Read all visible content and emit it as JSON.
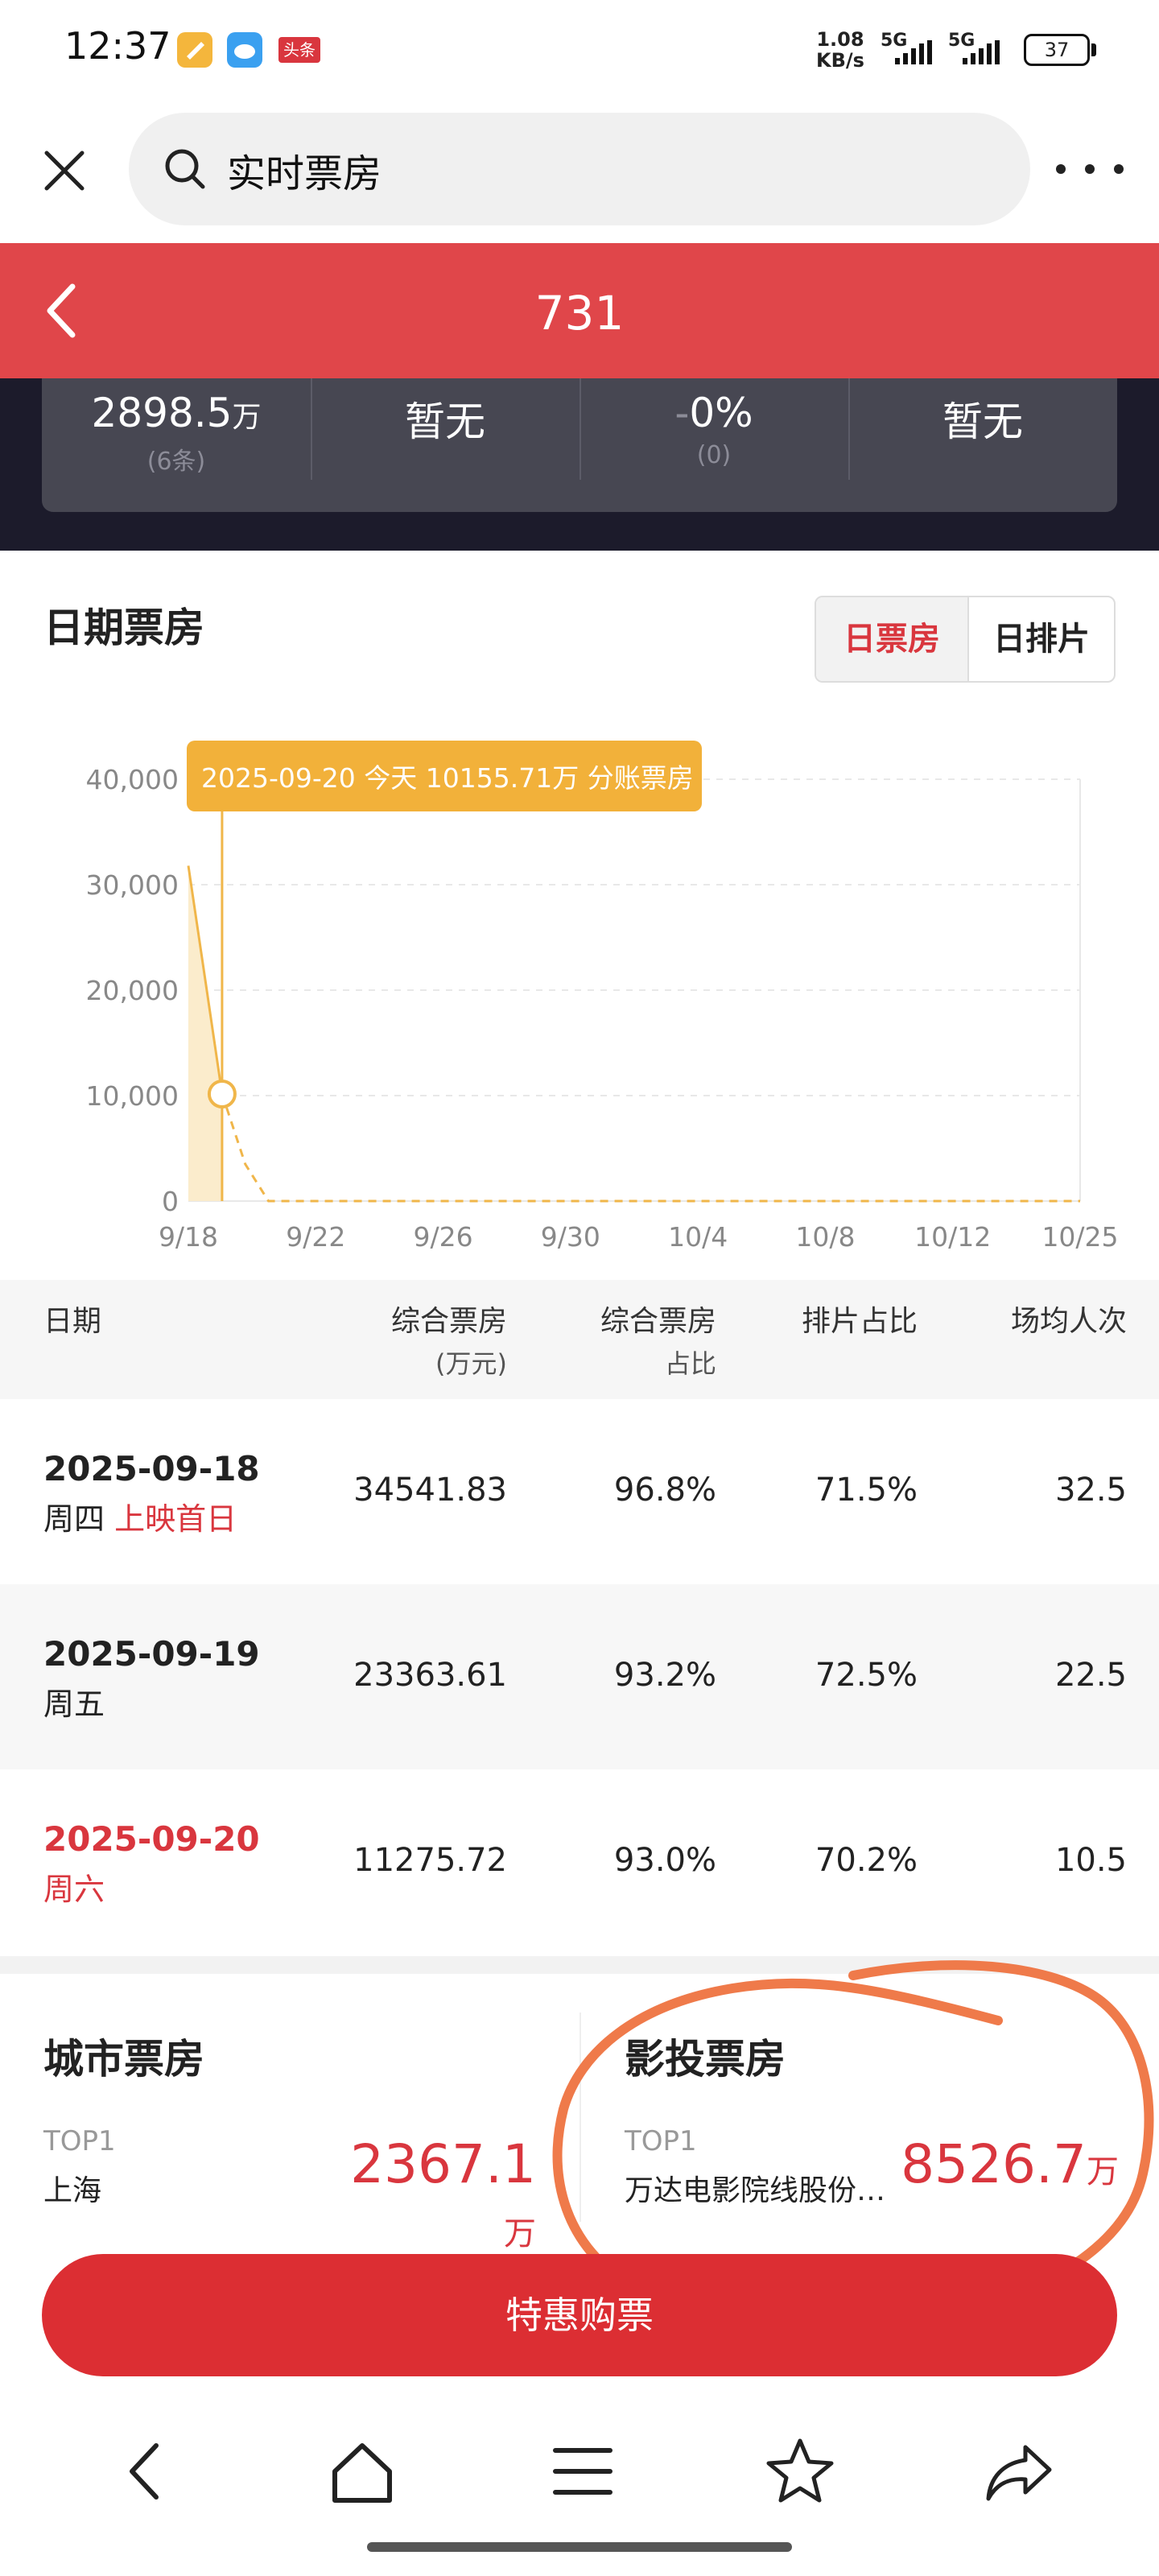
{
  "status_bar": {
    "time": "12:37",
    "app_badge": "头条",
    "net_speed_value": "1.08",
    "net_speed_unit": "KB/s",
    "sim1": "5G",
    "sim2": "5G",
    "battery": "37"
  },
  "browser": {
    "search_text": "实时票房",
    "close_icon": "close-icon",
    "search_icon": "search-icon",
    "more_icon": "more-icon"
  },
  "header": {
    "title": "731",
    "back_icon": "chevron-left-icon"
  },
  "stats": [
    {
      "value": "2898.5",
      "unit": "万",
      "sub": "(6条)"
    },
    {
      "value": "暂无",
      "unit": "",
      "sub": ""
    },
    {
      "prefix": "-",
      "value": "0%",
      "unit": "",
      "sub": "(0)"
    },
    {
      "value": "暂无",
      "unit": "",
      "sub": ""
    }
  ],
  "section_title": "日期票房",
  "toggle": {
    "day_box_office": "日票房",
    "day_schedule": "日排片"
  },
  "chart_data": {
    "type": "area",
    "tooltip": "2025-09-20 今天 10155.71万 分账票房",
    "x_ticks": [
      "9/18",
      "9/22",
      "9/26",
      "9/30",
      "10/4",
      "10/8",
      "10/12",
      "10/25"
    ],
    "y_ticks": [
      "40,000",
      "30,000",
      "20,000",
      "10,000",
      "0"
    ],
    "ylim": [
      0,
      40000
    ],
    "series": [
      {
        "values": [
          31800,
          21000,
          10155.71
        ],
        "dates": [
          "2025-09-18",
          "2025-09-19",
          "2025-09-20"
        ],
        "style": "solid-area"
      },
      {
        "values": [
          10155.71,
          3500,
          0,
          0,
          0,
          0,
          0,
          0,
          0,
          0,
          0,
          0,
          0,
          0,
          0,
          0,
          0,
          0,
          0,
          0,
          0,
          0,
          0,
          0,
          0,
          0,
          0,
          0,
          0,
          0,
          0,
          0,
          0,
          0,
          0,
          0,
          0,
          0
        ],
        "dates_start": "2025-09-20",
        "dates_end": "2025-10-25",
        "style": "dashed"
      }
    ],
    "highlight": {
      "date": "2025-09-20",
      "value": 10155.71
    },
    "colors": {
      "line": "#f0b64a",
      "area": "#fbeccc",
      "tooltip": "#f2b13a",
      "grid": "#e8e8e8"
    }
  },
  "table": {
    "headers": [
      "日期",
      "综合票房",
      "(万元)",
      "综合票房",
      "占比",
      "排片占比",
      "场均人次"
    ],
    "rows": [
      {
        "date": "2025-09-18",
        "weekday": "周四",
        "note": "上映首日",
        "box_office": "34541.83",
        "share": "96.8%",
        "schedule": "71.5%",
        "avg": "32.5",
        "highlight": false
      },
      {
        "date": "2025-09-19",
        "weekday": "周五",
        "note": "",
        "box_office": "23363.61",
        "share": "93.2%",
        "schedule": "72.5%",
        "avg": "22.5",
        "highlight": false
      },
      {
        "date": "2025-09-20",
        "weekday": "周六",
        "note": "",
        "box_office": "11275.72",
        "share": "93.0%",
        "schedule": "70.2%",
        "avg": "10.5",
        "highlight": true
      }
    ]
  },
  "city": {
    "title": "城市票房",
    "top_label": "TOP1",
    "name": "上海",
    "value": "2367.1",
    "unit": "万"
  },
  "investor": {
    "title": "影投票房",
    "top_label": "TOP1",
    "name": "万达电影院线股份…",
    "value": "8526.7",
    "unit": "万"
  },
  "buy_button": "特惠购票",
  "nav": [
    "back-icon",
    "home-icon",
    "menu-icon",
    "star-icon",
    "share-icon"
  ]
}
